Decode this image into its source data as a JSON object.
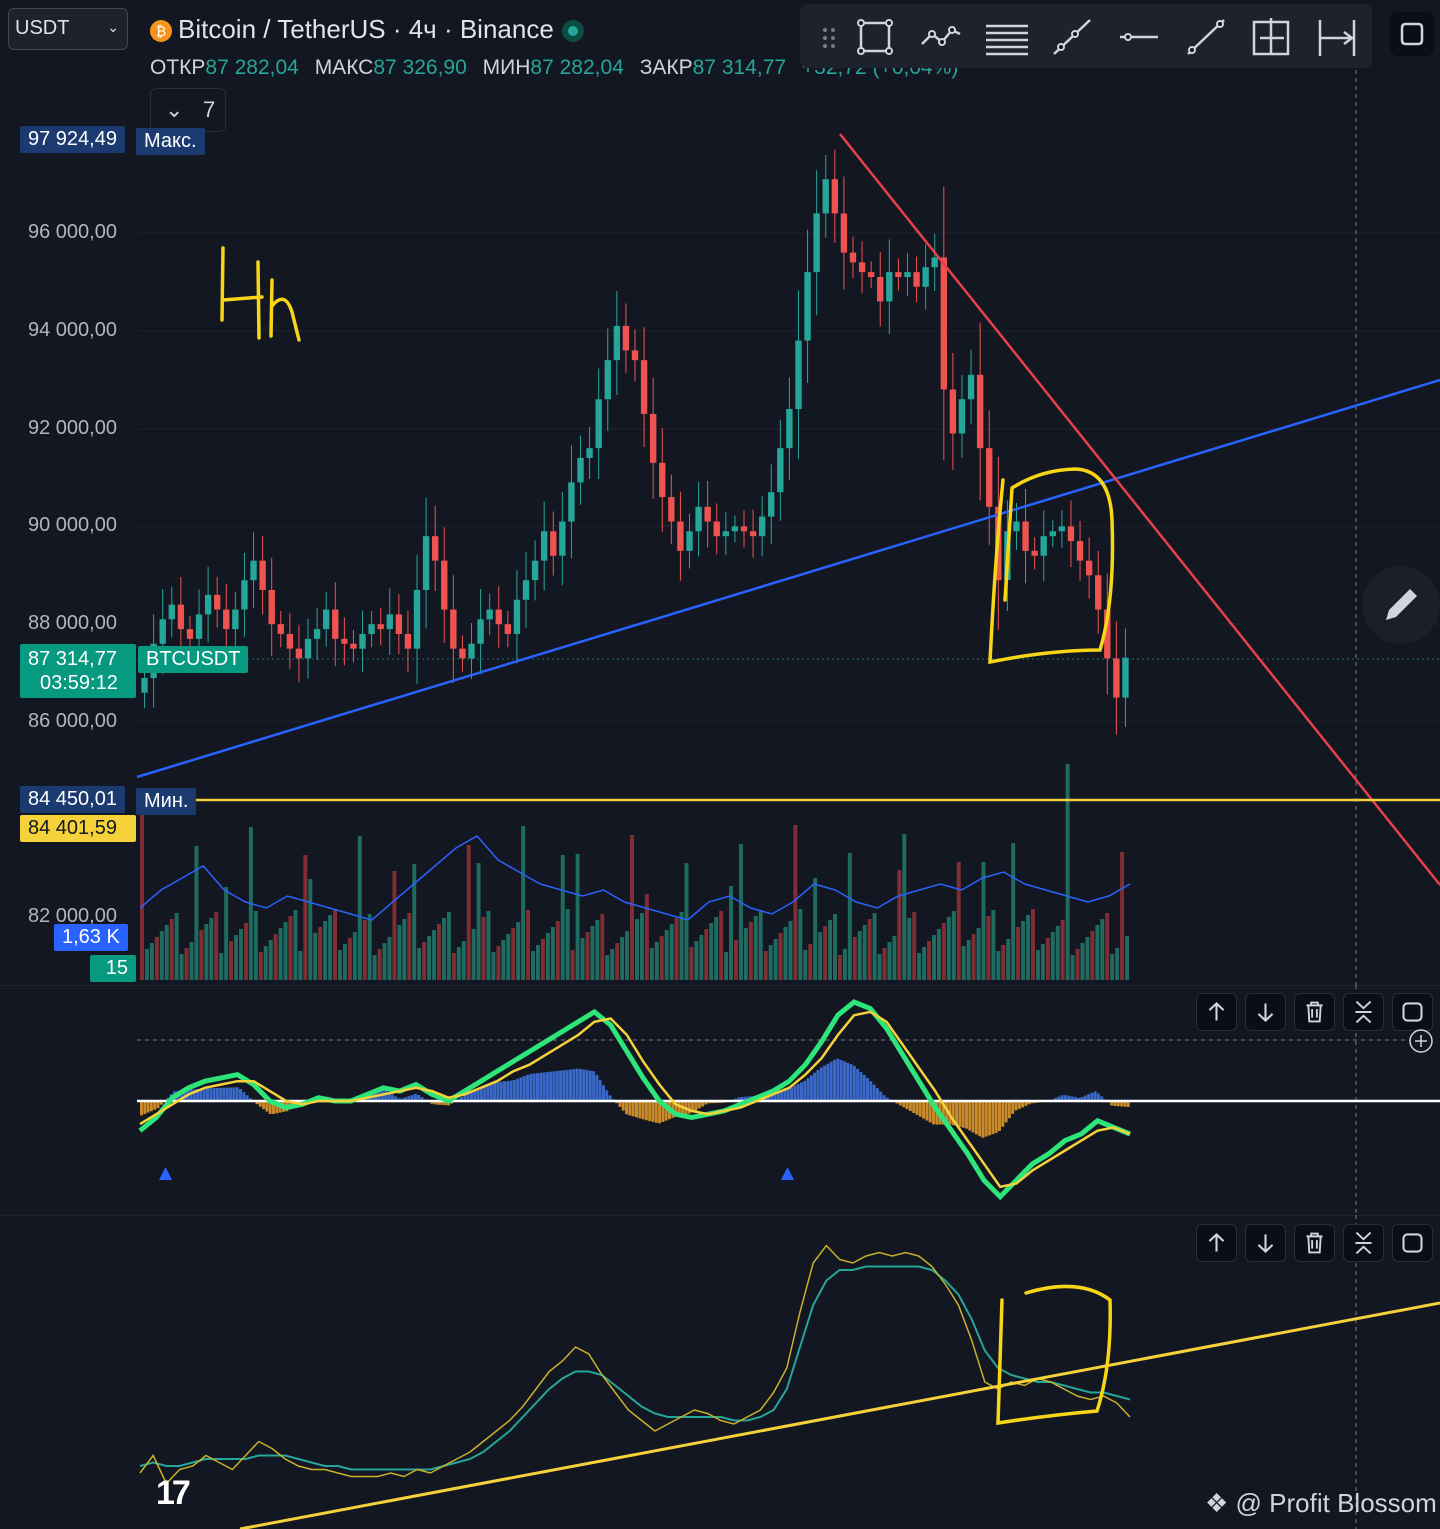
{
  "header": {
    "currency_select": "USDT",
    "title": "Bitcoin / TetherUS · 4ч · Binance",
    "ohlc": [
      {
        "key": "ОТКР",
        "value": "87 282,04"
      },
      {
        "key": "МАКС",
        "value": "87 326,90"
      },
      {
        "key": "МИН",
        "value": "87 282,04"
      },
      {
        "key": "ЗАКР",
        "value": "87 314,77"
      }
    ],
    "change": "+32,72 (+0,04%)",
    "indicators_count": "7"
  },
  "toolbar": {
    "tools": [
      "drag-handle-icon",
      "rectangle-icon",
      "path-icon",
      "parallel-channel-icon",
      "trend-line-icon",
      "horizontal-ray-icon",
      "ray-icon",
      "fixed-range-icon",
      "date-range-icon",
      "fullscreen-icon"
    ]
  },
  "price_axis": {
    "labels": [
      "96 000,00",
      "94 000,00",
      "92 000,00",
      "90 000,00",
      "88 000,00",
      "86 000,00",
      "82 000,00"
    ]
  },
  "tags": {
    "max_value": "97 924,49",
    "max_label": "Макс.",
    "last_price": "87 314,77",
    "countdown": "03:59:12",
    "symbol": "BTCUSDT",
    "min_value": "84 450,01",
    "min_label": "Мин.",
    "yellow_line": "84 401,59",
    "volume_value": "1,63 K",
    "volume_ma": "15"
  },
  "annotations": {
    "timeframe_note": "4h"
  },
  "watermark": "@ Profit Blossom",
  "chart_data": {
    "type": "candlestick",
    "symbol": "BTCUSDT",
    "interval": "4h",
    "price_range": [
      81500,
      98500
    ],
    "close_series": [
      86900,
      87600,
      88100,
      88400,
      87900,
      87700,
      88200,
      88600,
      88300,
      87900,
      88300,
      88900,
      89300,
      88700,
      88000,
      87800,
      87500,
      87300,
      87700,
      87900,
      88300,
      87700,
      87600,
      87500,
      87800,
      88000,
      87900,
      88200,
      87800,
      87500,
      88700,
      89800,
      89300,
      88300,
      87500,
      87300,
      87600,
      88100,
      88300,
      88000,
      87800,
      88500,
      88900,
      89300,
      89900,
      89400,
      90100,
      90900,
      91400,
      91600,
      92600,
      93400,
      94100,
      93600,
      93400,
      92300,
      91300,
      90600,
      90100,
      89500,
      89900,
      90400,
      90100,
      89800,
      89900,
      90000,
      89900,
      89800,
      90200,
      90700,
      91600,
      92400,
      93800,
      95200,
      96400,
      97100,
      96400,
      95600,
      95400,
      95200,
      95100,
      94600,
      95200,
      95100,
      95200,
      94900,
      95300,
      95500,
      92800,
      91900,
      92600,
      93100,
      91600,
      90400,
      88900,
      89900,
      90100,
      89500,
      89400,
      89800,
      89900,
      90000,
      89700,
      89300,
      89000,
      88300,
      87300,
      86500,
      87314.77
    ],
    "volume_ma": [
      1.2,
      1.5,
      1.7,
      1.9,
      1.5,
      1.3,
      1.2,
      1.4,
      1.3,
      1.2,
      1.1,
      1.0,
      1.3,
      1.6,
      1.9,
      2.2,
      2.4,
      2.0,
      1.8,
      1.6,
      1.5,
      1.4,
      1.5,
      1.3,
      1.2,
      1.1,
      1.0,
      1.3,
      1.4,
      1.2,
      1.1,
      1.3,
      1.6,
      1.5,
      1.3,
      1.2,
      1.4,
      1.5,
      1.6,
      1.5,
      1.7,
      1.8,
      1.6,
      1.5,
      1.4,
      1.3,
      1.4,
      1.6
    ],
    "macd": {
      "macd_line": [
        -0.9,
        -0.5,
        0.1,
        0.4,
        0.6,
        0.7,
        0.8,
        0.5,
        0.0,
        -0.2,
        -0.1,
        0.1,
        0.0,
        0.0,
        0.2,
        0.4,
        0.3,
        0.5,
        0.2,
        0.0,
        0.3,
        0.6,
        0.9,
        1.2,
        1.5,
        1.8,
        2.1,
        2.4,
        2.7,
        2.3,
        1.5,
        0.7,
        0.0,
        -0.4,
        -0.5,
        -0.4,
        -0.3,
        -0.1,
        0.1,
        0.3,
        0.6,
        1.1,
        1.8,
        2.6,
        3.0,
        2.8,
        2.2,
        1.4,
        0.6,
        -0.2,
        -0.9,
        -1.6,
        -2.4,
        -2.9,
        -2.4,
        -1.9,
        -1.6,
        -1.2,
        -1.0,
        -0.6,
        -0.8,
        -1.0
      ],
      "signal_line": [
        -0.7,
        -0.4,
        -0.1,
        0.2,
        0.4,
        0.5,
        0.6,
        0.6,
        0.3,
        0.0,
        -0.1,
        0.0,
        0.0,
        0.0,
        0.1,
        0.2,
        0.3,
        0.4,
        0.3,
        0.1,
        0.2,
        0.4,
        0.6,
        0.9,
        1.1,
        1.4,
        1.7,
        2.0,
        2.4,
        2.5,
        2.0,
        1.2,
        0.5,
        -0.1,
        -0.3,
        -0.4,
        -0.3,
        -0.2,
        0.0,
        0.2,
        0.4,
        0.8,
        1.3,
        2.0,
        2.6,
        2.7,
        2.4,
        1.7,
        1.0,
        0.3,
        -0.5,
        -1.2,
        -1.9,
        -2.6,
        -2.5,
        -2.1,
        -1.8,
        -1.5,
        -1.2,
        -0.9,
        -0.8,
        -1.0
      ],
      "signals": [
        "buy",
        "buy"
      ]
    },
    "oscillator": {
      "fast": [
        12,
        17,
        9,
        13,
        14,
        17,
        15,
        13,
        17,
        21,
        19,
        16,
        14,
        13,
        13,
        12,
        11,
        11,
        11,
        12,
        11,
        13,
        12,
        14,
        16,
        18,
        21,
        24,
        27,
        31,
        36,
        41,
        44,
        48,
        46,
        40,
        35,
        30,
        27,
        24,
        26,
        28,
        30,
        29,
        27,
        26,
        28,
        30,
        35,
        42,
        58,
        72,
        77,
        73,
        72,
        74,
        75,
        74,
        75,
        74,
        71,
        66,
        60,
        50,
        38,
        36,
        38,
        37,
        39,
        38,
        36,
        34,
        33,
        34,
        32,
        28
      ],
      "slow": [
        14,
        15,
        14,
        14,
        15,
        16,
        16,
        16,
        16,
        17,
        17,
        17,
        16,
        15,
        14,
        14,
        13,
        13,
        13,
        13,
        13,
        13,
        13,
        14,
        15,
        16,
        18,
        21,
        24,
        28,
        32,
        36,
        39,
        41,
        41,
        40,
        37,
        34,
        31,
        29,
        28,
        28,
        28,
        28,
        28,
        27,
        27,
        28,
        30,
        36,
        48,
        60,
        67,
        70,
        70,
        71,
        71,
        71,
        71,
        71,
        70,
        67,
        63,
        56,
        47,
        42,
        40,
        39,
        38,
        38,
        37,
        36,
        35,
        35,
        34,
        33
      ]
    }
  }
}
